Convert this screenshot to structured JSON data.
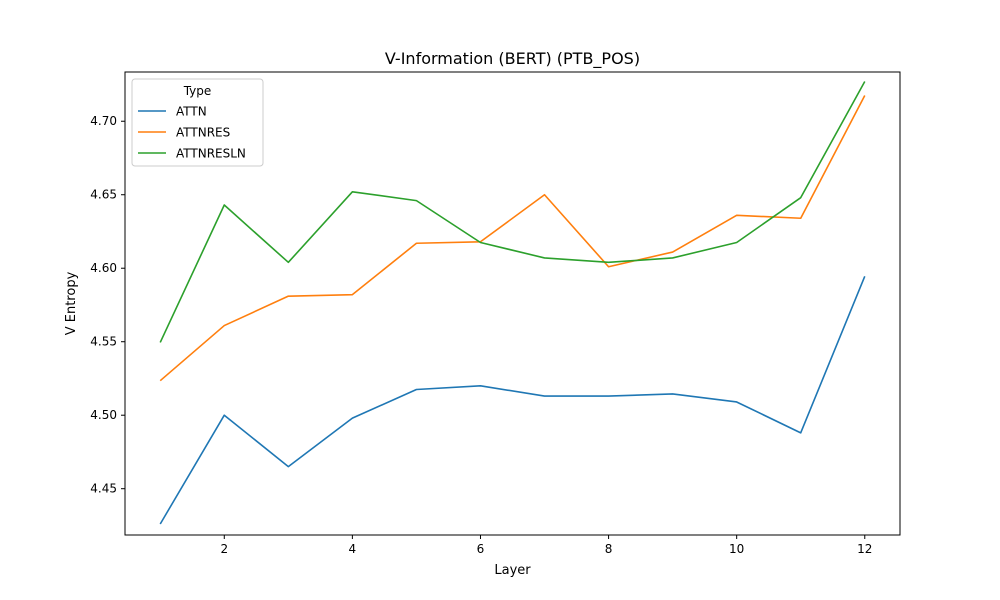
{
  "chart_data": {
    "type": "line",
    "title": "V-Information (BERT) (PTB_POS)",
    "xlabel": "Layer",
    "ylabel": "V Entropy",
    "xlim": [
      0.45,
      12.55
    ],
    "ylim": [
      4.4185,
      4.7335
    ],
    "xticks": [
      2,
      4,
      6,
      8,
      10,
      12
    ],
    "yticks": [
      4.45,
      4.5,
      4.55,
      4.6,
      4.65,
      4.7
    ],
    "xtick_labels": [
      "2",
      "4",
      "6",
      "8",
      "10",
      "12"
    ],
    "ytick_labels": [
      "4.45",
      "4.50",
      "4.55",
      "4.60",
      "4.65",
      "4.70"
    ],
    "x": [
      1,
      2,
      3,
      4,
      5,
      6,
      7,
      8,
      9,
      10,
      11,
      12
    ],
    "grid": false,
    "legend": {
      "title": "Type",
      "position": "top-left"
    },
    "series": [
      {
        "name": "ATTN",
        "color": "#1f77b4",
        "values": [
          4.426,
          4.5,
          4.465,
          4.498,
          4.5175,
          4.52,
          4.513,
          4.513,
          4.5145,
          4.509,
          4.488,
          4.5945
        ]
      },
      {
        "name": "ATTNRES",
        "color": "#ff7f0e",
        "values": [
          4.5235,
          4.561,
          4.581,
          4.582,
          4.617,
          4.618,
          4.65,
          4.601,
          4.611,
          4.636,
          4.634,
          4.7175
        ]
      },
      {
        "name": "ATTNRESLN",
        "color": "#2ca02c",
        "values": [
          4.5495,
          4.643,
          4.604,
          4.652,
          4.646,
          4.6175,
          4.607,
          4.604,
          4.607,
          4.6175,
          4.648,
          4.727
        ]
      }
    ]
  }
}
